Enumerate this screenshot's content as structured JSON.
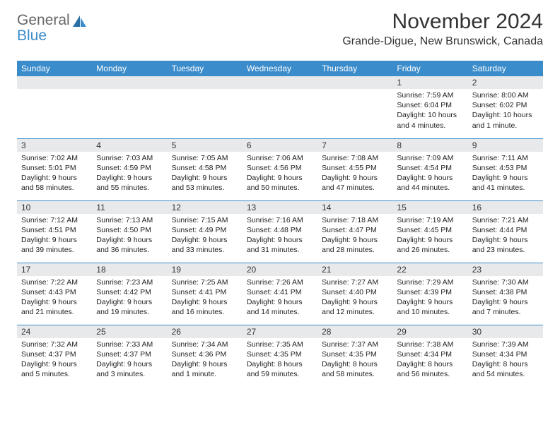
{
  "logo": {
    "word1": "General",
    "word2": "Blue"
  },
  "title": "November 2024",
  "location": "Grande-Digue, New Brunswick, Canada",
  "colors": {
    "brand_blue": "#3b8ccb",
    "header_text": "#666666",
    "daynum_bg": "#e8e9eb",
    "text": "#222222"
  },
  "days_of_week": [
    "Sunday",
    "Monday",
    "Tuesday",
    "Wednesday",
    "Thursday",
    "Friday",
    "Saturday"
  ],
  "weeks": [
    [
      null,
      null,
      null,
      null,
      null,
      {
        "n": "1",
        "sunrise": "7:59 AM",
        "sunset": "6:04 PM",
        "daylight": "10 hours and 4 minutes."
      },
      {
        "n": "2",
        "sunrise": "8:00 AM",
        "sunset": "6:02 PM",
        "daylight": "10 hours and 1 minute."
      }
    ],
    [
      {
        "n": "3",
        "sunrise": "7:02 AM",
        "sunset": "5:01 PM",
        "daylight": "9 hours and 58 minutes."
      },
      {
        "n": "4",
        "sunrise": "7:03 AM",
        "sunset": "4:59 PM",
        "daylight": "9 hours and 55 minutes."
      },
      {
        "n": "5",
        "sunrise": "7:05 AM",
        "sunset": "4:58 PM",
        "daylight": "9 hours and 53 minutes."
      },
      {
        "n": "6",
        "sunrise": "7:06 AM",
        "sunset": "4:56 PM",
        "daylight": "9 hours and 50 minutes."
      },
      {
        "n": "7",
        "sunrise": "7:08 AM",
        "sunset": "4:55 PM",
        "daylight": "9 hours and 47 minutes."
      },
      {
        "n": "8",
        "sunrise": "7:09 AM",
        "sunset": "4:54 PM",
        "daylight": "9 hours and 44 minutes."
      },
      {
        "n": "9",
        "sunrise": "7:11 AM",
        "sunset": "4:53 PM",
        "daylight": "9 hours and 41 minutes."
      }
    ],
    [
      {
        "n": "10",
        "sunrise": "7:12 AM",
        "sunset": "4:51 PM",
        "daylight": "9 hours and 39 minutes."
      },
      {
        "n": "11",
        "sunrise": "7:13 AM",
        "sunset": "4:50 PM",
        "daylight": "9 hours and 36 minutes."
      },
      {
        "n": "12",
        "sunrise": "7:15 AM",
        "sunset": "4:49 PM",
        "daylight": "9 hours and 33 minutes."
      },
      {
        "n": "13",
        "sunrise": "7:16 AM",
        "sunset": "4:48 PM",
        "daylight": "9 hours and 31 minutes."
      },
      {
        "n": "14",
        "sunrise": "7:18 AM",
        "sunset": "4:47 PM",
        "daylight": "9 hours and 28 minutes."
      },
      {
        "n": "15",
        "sunrise": "7:19 AM",
        "sunset": "4:45 PM",
        "daylight": "9 hours and 26 minutes."
      },
      {
        "n": "16",
        "sunrise": "7:21 AM",
        "sunset": "4:44 PM",
        "daylight": "9 hours and 23 minutes."
      }
    ],
    [
      {
        "n": "17",
        "sunrise": "7:22 AM",
        "sunset": "4:43 PM",
        "daylight": "9 hours and 21 minutes."
      },
      {
        "n": "18",
        "sunrise": "7:23 AM",
        "sunset": "4:42 PM",
        "daylight": "9 hours and 19 minutes."
      },
      {
        "n": "19",
        "sunrise": "7:25 AM",
        "sunset": "4:41 PM",
        "daylight": "9 hours and 16 minutes."
      },
      {
        "n": "20",
        "sunrise": "7:26 AM",
        "sunset": "4:41 PM",
        "daylight": "9 hours and 14 minutes."
      },
      {
        "n": "21",
        "sunrise": "7:27 AM",
        "sunset": "4:40 PM",
        "daylight": "9 hours and 12 minutes."
      },
      {
        "n": "22",
        "sunrise": "7:29 AM",
        "sunset": "4:39 PM",
        "daylight": "9 hours and 10 minutes."
      },
      {
        "n": "23",
        "sunrise": "7:30 AM",
        "sunset": "4:38 PM",
        "daylight": "9 hours and 7 minutes."
      }
    ],
    [
      {
        "n": "24",
        "sunrise": "7:32 AM",
        "sunset": "4:37 PM",
        "daylight": "9 hours and 5 minutes."
      },
      {
        "n": "25",
        "sunrise": "7:33 AM",
        "sunset": "4:37 PM",
        "daylight": "9 hours and 3 minutes."
      },
      {
        "n": "26",
        "sunrise": "7:34 AM",
        "sunset": "4:36 PM",
        "daylight": "9 hours and 1 minute."
      },
      {
        "n": "27",
        "sunrise": "7:35 AM",
        "sunset": "4:35 PM",
        "daylight": "8 hours and 59 minutes."
      },
      {
        "n": "28",
        "sunrise": "7:37 AM",
        "sunset": "4:35 PM",
        "daylight": "8 hours and 58 minutes."
      },
      {
        "n": "29",
        "sunrise": "7:38 AM",
        "sunset": "4:34 PM",
        "daylight": "8 hours and 56 minutes."
      },
      {
        "n": "30",
        "sunrise": "7:39 AM",
        "sunset": "4:34 PM",
        "daylight": "8 hours and 54 minutes."
      }
    ]
  ],
  "labels": {
    "sunrise": "Sunrise: ",
    "sunset": "Sunset: ",
    "daylight": "Daylight: "
  }
}
